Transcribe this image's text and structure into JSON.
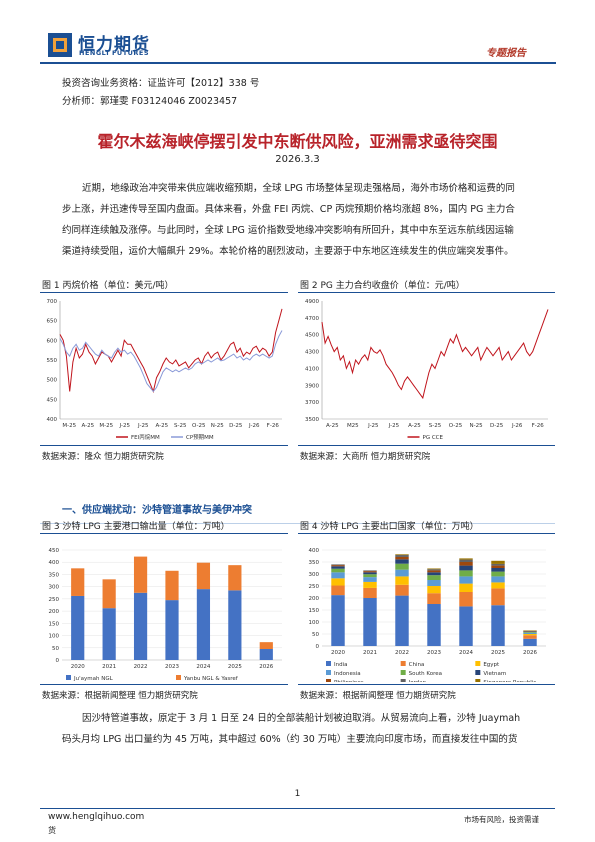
{
  "header": {
    "company_cn": "恒力期货",
    "company_en": "HENGLI FUTURES",
    "report_type": "专题报告"
  },
  "meta": {
    "license": "投资咨询业务资格：证监许可【2012】338 号",
    "analyst": "分析师：郭瑾雯 F03124046 Z0023457"
  },
  "title": "霍尔木兹海峡停摆引发中东断供风险，亚洲需求亟待突围",
  "date": "2026.3.3",
  "intro_lines": [
    "近期，地缘政治冲突带来供应端收缩预期，全球 LPG 市场整体呈现走强格局，海外市场价格和运费的同",
    "步上涨，并迅速传导至国内盘面。具体来看，外盘 FEI 丙烷、CP 丙烷预期价格均涨超 8%，国内 PG 主力合",
    "约同样连续触及涨停。与此同时，全球 LPG 运价指数受地缘冲突影响有所回升，其中中东至远东航线因运输",
    "渠道持续受阻，运价大幅飙升 29%。本轮价格的剧烈波动，主要源于中东地区连续发生的供应端突发事件。"
  ],
  "figures": {
    "fig1": {
      "title": "图 1 丙烷价格（单位：美元/吨）",
      "source": "数据来源：隆众 恒力期货研究院"
    },
    "fig2": {
      "title": "图 2 PG 主力合约收盘价（单位：元/吨）",
      "source": "数据来源：大商所 恒力期货研究院"
    },
    "fig3": {
      "title": "图 3 沙特 LPG 主要港口输出量（单位：万吨）",
      "source": "数据来源：根据新闻整理 恒力期货研究院"
    },
    "fig4": {
      "title": "图 4 沙特 LPG 主要出口国家（单位：万吨）",
      "source": "数据来源：根据新闻整理 恒力期货研究院"
    }
  },
  "section_title": "一、供应端扰动：沙特管道事故与美伊冲突",
  "body_lines": [
    "因沙特管道事故，原定于 3 月 1 日至 24 日的全部装船计划被迫取消。从贸易流向上看，沙特 Juaymah",
    "码头月均 LPG 出口量约为 45 万吨，其中超过 60%（约 30 万吨）主要流向印度市场，而直接发往中国的货"
  ],
  "footer": {
    "page_number": "1",
    "website": "www.henglqihuo.com",
    "tail": "货",
    "slogan": "市场有风险，投资需谨"
  },
  "chart_data": [
    {
      "type": "line",
      "title": "图 1 丙烷价格（单位：美元/吨）",
      "x_ticks": [
        "M-25",
        "A-25",
        "M-25",
        "J-25",
        "J-25",
        "A-25",
        "S-25",
        "O-25",
        "N-25",
        "D-25",
        "J-26",
        "F-26"
      ],
      "ylim": [
        400,
        700
      ],
      "y_ticks": [
        400,
        450,
        500,
        550,
        600,
        650,
        700
      ],
      "grid": false,
      "legend": "bottom",
      "series": [
        {
          "name": "FEI丙烷MM",
          "color": "#c0141c",
          "values": [
            615,
            600,
            560,
            470,
            545,
            580,
            555,
            565,
            590,
            570,
            560,
            540,
            555,
            570,
            565,
            560,
            545,
            560,
            575,
            560,
            600,
            590,
            590,
            575,
            560,
            545,
            530,
            510,
            490,
            470,
            505,
            520,
            540,
            555,
            545,
            540,
            550,
            535,
            540,
            545,
            530,
            540,
            550,
            555,
            540,
            560,
            570,
            555,
            565,
            570,
            550,
            560,
            575,
            590,
            595,
            570,
            580,
            560,
            570,
            565,
            580,
            585,
            570,
            580,
            575,
            560,
            570,
            620,
            650,
            680
          ]
        },
        {
          "name": "CP预期MM",
          "color": "#8a9ad8",
          "values": [
            605,
            590,
            570,
            560,
            580,
            590,
            575,
            580,
            595,
            585,
            575,
            565,
            560,
            575,
            565,
            560,
            555,
            570,
            580,
            570,
            575,
            565,
            570,
            560,
            545,
            530,
            510,
            490,
            480,
            470,
            480,
            500,
            520,
            530,
            525,
            520,
            525,
            520,
            525,
            530,
            525,
            530,
            540,
            545,
            540,
            545,
            550,
            545,
            550,
            555,
            548,
            550,
            555,
            560,
            565,
            555,
            560,
            550,
            555,
            550,
            560,
            565,
            560,
            565,
            560,
            555,
            560,
            590,
            610,
            625
          ]
        }
      ]
    },
    {
      "type": "line",
      "title": "图 2 PG 主力合约收盘价（单位：元/吨）",
      "x_ticks": [
        "A-25",
        "M25",
        "J-25",
        "J-25",
        "A-25",
        "S-25",
        "O-25",
        "N-25",
        "D-25",
        "J-26",
        "F-26"
      ],
      "ylim": [
        3500,
        4900
      ],
      "y_ticks": [
        3500,
        3700,
        3900,
        4100,
        4300,
        4500,
        4700,
        4900
      ],
      "grid": false,
      "legend": "bottom",
      "series": [
        {
          "name": "PG CCE",
          "color": "#c0141c",
          "values": [
            4650,
            4400,
            4480,
            4380,
            4300,
            4350,
            4200,
            4250,
            4100,
            4180,
            4050,
            4200,
            4150,
            4220,
            4260,
            4200,
            4350,
            4300,
            4280,
            4320,
            4250,
            4150,
            4100,
            4050,
            3980,
            3900,
            3850,
            3950,
            4000,
            3950,
            3900,
            3850,
            3800,
            3750,
            3900,
            4050,
            4150,
            4100,
            4200,
            4300,
            4250,
            4350,
            4450,
            4400,
            4500,
            4400,
            4300,
            4350,
            4300,
            4250,
            4300,
            4350,
            4200,
            4280,
            4350,
            4300,
            4250,
            4300,
            4350,
            4200,
            4250,
            4300,
            4200,
            4250,
            4300,
            4350,
            4400,
            4300,
            4250,
            4300,
            4400,
            4500,
            4600,
            4700,
            4800
          ]
        }
      ]
    },
    {
      "type": "bar",
      "title": "图 3 沙特 LPG 主要港口输出量（单位：万吨）",
      "stacked": true,
      "categories": [
        "2020",
        "2021",
        "2022",
        "2023",
        "2024",
        "2025",
        "2026"
      ],
      "ylim": [
        0,
        450
      ],
      "y_ticks": [
        0,
        50,
        100,
        150,
        200,
        250,
        300,
        350,
        400,
        450
      ],
      "legend": "bottom",
      "series": [
        {
          "name": "Ju'aymah NGL",
          "color": "#4472c4",
          "values": [
            262,
            212,
            275,
            245,
            290,
            285,
            45
          ]
        },
        {
          "name": "Yanbu NGL & Yasref",
          "color": "#ed7d31",
          "values": [
            113,
            118,
            148,
            120,
            108,
            103,
            28
          ]
        }
      ]
    },
    {
      "type": "bar",
      "title": "图 4 沙特 LPG 主要出口国家（单位：万吨）",
      "stacked": true,
      "categories": [
        "2020",
        "2021",
        "2022",
        "2023",
        "2024",
        "2025",
        "2026"
      ],
      "ylim": [
        0,
        400
      ],
      "y_ticks": [
        0,
        50,
        100,
        150,
        200,
        250,
        300,
        350,
        400
      ],
      "legend": "bottom",
      "series": [
        {
          "name": "India",
          "color": "#4472c4",
          "values": [
            212,
            200,
            210,
            175,
            165,
            170,
            30
          ]
        },
        {
          "name": "China",
          "color": "#ed7d31",
          "values": [
            40,
            42,
            45,
            45,
            60,
            70,
            15
          ]
        },
        {
          "name": "Egypt",
          "color": "#ffc000",
          "values": [
            30,
            25,
            35,
            30,
            35,
            25,
            5
          ]
        },
        {
          "name": "Indonesia",
          "color": "#5b9bd5",
          "values": [
            25,
            20,
            28,
            25,
            30,
            25,
            5
          ]
        },
        {
          "name": "South Korea",
          "color": "#70ad47",
          "values": [
            15,
            12,
            25,
            20,
            25,
            20,
            3
          ]
        },
        {
          "name": "Vietnam",
          "color": "#264478",
          "values": [
            10,
            8,
            18,
            12,
            20,
            15,
            2
          ]
        },
        {
          "name": "Philippines",
          "color": "#9e480e",
          "values": [
            5,
            5,
            10,
            8,
            15,
            10,
            2
          ]
        },
        {
          "name": "Jordan",
          "color": "#636363",
          "values": [
            3,
            3,
            8,
            5,
            10,
            7,
            1
          ]
        },
        {
          "name": "Singapore Republic",
          "color": "#997300",
          "values": [
            0,
            0,
            3,
            3,
            5,
            13,
            2
          ]
        }
      ]
    }
  ]
}
